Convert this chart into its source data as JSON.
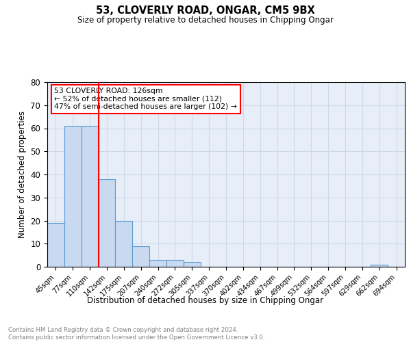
{
  "title1": "53, CLOVERLY ROAD, ONGAR, CM5 9BX",
  "title2": "Size of property relative to detached houses in Chipping Ongar",
  "xlabel": "Distribution of detached houses by size in Chipping Ongar",
  "ylabel": "Number of detached properties",
  "bin_labels": [
    "45sqm",
    "77sqm",
    "110sqm",
    "142sqm",
    "175sqm",
    "207sqm",
    "240sqm",
    "272sqm",
    "305sqm",
    "337sqm",
    "370sqm",
    "402sqm",
    "434sqm",
    "467sqm",
    "499sqm",
    "532sqm",
    "564sqm",
    "597sqm",
    "629sqm",
    "662sqm",
    "694sqm"
  ],
  "bin_counts": [
    19,
    61,
    61,
    38,
    20,
    9,
    3,
    3,
    2,
    0,
    0,
    0,
    0,
    0,
    0,
    0,
    0,
    0,
    0,
    1,
    0
  ],
  "bar_color": "#c9d9f0",
  "bar_edge_color": "#5b9bd5",
  "grid_color": "#d0d8e8",
  "red_line_index": 2.5,
  "annotation_text": "53 CLOVERLY ROAD: 126sqm\n← 52% of detached houses are smaller (112)\n47% of semi-detached houses are larger (102) →",
  "annotation_box_color": "white",
  "annotation_box_edge": "red",
  "footer_line1": "Contains HM Land Registry data © Crown copyright and database right 2024.",
  "footer_line2": "Contains public sector information licensed under the Open Government Licence v3.0.",
  "ylim": [
    0,
    80
  ],
  "yticks": [
    0,
    10,
    20,
    30,
    40,
    50,
    60,
    70,
    80
  ],
  "bg_color": "#e8eef8"
}
